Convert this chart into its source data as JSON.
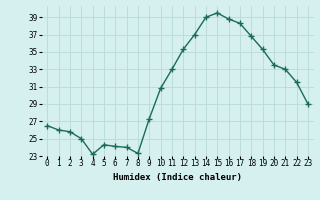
{
  "x": [
    0,
    1,
    2,
    3,
    4,
    5,
    6,
    7,
    8,
    9,
    10,
    11,
    12,
    13,
    14,
    15,
    16,
    17,
    18,
    19,
    20,
    21,
    22,
    23
  ],
  "y": [
    26.5,
    26.0,
    25.8,
    25.0,
    23.2,
    24.3,
    24.1,
    24.0,
    23.3,
    27.3,
    30.8,
    33.0,
    35.3,
    37.0,
    39.0,
    39.5,
    38.8,
    38.3,
    36.8,
    35.3,
    33.5,
    33.0,
    31.5,
    29.0
  ],
  "line_color": "#1a6b5a",
  "marker": "+",
  "marker_size": 4,
  "marker_lw": 1.0,
  "line_width": 1.0,
  "bg_color": "#d6f0f0",
  "grid_color": "#b8dada",
  "xlabel": "Humidex (Indice chaleur)",
  "ylim": [
    23,
    40
  ],
  "yticks": [
    23,
    25,
    27,
    29,
    31,
    33,
    35,
    37,
    39
  ],
  "xticks": [
    0,
    1,
    2,
    3,
    4,
    5,
    6,
    7,
    8,
    9,
    10,
    11,
    12,
    13,
    14,
    15,
    16,
    17,
    18,
    19,
    20,
    21,
    22,
    23
  ],
  "tick_fontsize": 5.5,
  "label_fontsize": 6.5
}
